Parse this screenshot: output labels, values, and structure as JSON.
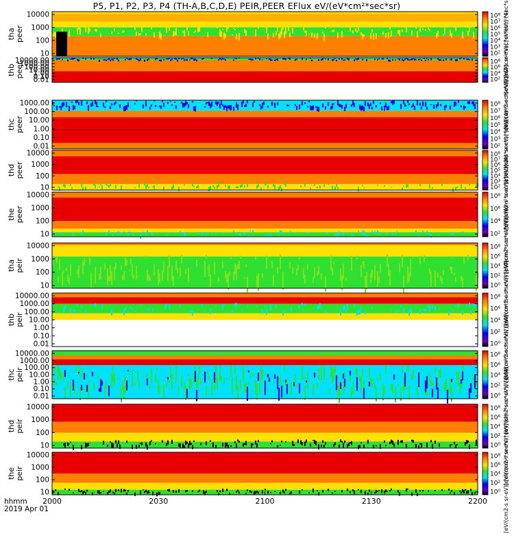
{
  "title": "P5, P1, P2, P3, P4 (TH-A,B,C,D,E) PEIR,PEER EFlux eV/(eV*cm²*sec*sr)",
  "chart_data": {
    "type": "heatmap",
    "title": "P5, P1, P2, P3, P4 (TH-A,B,C,D,E) PEIR,PEER EFlux eV/(eV*cm²*sec*sr)",
    "xlabel": "hhmm",
    "date_label": "2019 Apr 01",
    "x_ticks": [
      "2000",
      "2030",
      "2100",
      "2130",
      "2200"
    ],
    "colorbar_label": "[eV/(cm2-s sr-eV)] [eV/(cm²*sec*sr*eV)] (4)",
    "colors": {
      "black": "#000000",
      "purple": "#6000c0",
      "blue": "#0000ff",
      "cyan": "#00e0ff",
      "green": "#30e030",
      "yellow": "#ffe000",
      "orange": "#ff8000",
      "red": "#e80000"
    },
    "panels": [
      {
        "id": "tha-peer",
        "label": [
          "tha",
          "peer"
        ],
        "yticks": [
          "10000",
          "1000",
          "100",
          "10"
        ],
        "cbar_ticks": [
          "10⁸",
          "10⁷",
          "10⁶",
          "10⁵",
          "10⁴",
          "10³",
          "10²"
        ]
      },
      {
        "id": "thb-peer",
        "label": [
          "thb",
          "peer"
        ],
        "yticks": [
          "10000.00",
          "1000.00",
          "100.00",
          "10.00",
          "1.00",
          "0.10",
          "0.01"
        ],
        "cbar_ticks": [
          "10⁸",
          "10⁶",
          "10⁴",
          "10²"
        ]
      },
      {
        "id": "thc-peer",
        "label": [
          "thc",
          "peer"
        ],
        "yticks": [
          "1000.00",
          "100.00",
          "10.00",
          "1.00",
          "0.10",
          "0.01"
        ],
        "cbar_ticks": [
          "10⁸",
          "10⁷",
          "10⁶",
          "10⁵",
          "10⁴",
          "10³",
          "10²"
        ]
      },
      {
        "id": "thd-peer",
        "label": [
          "thd",
          "peer"
        ],
        "yticks": [
          "10000",
          "1000",
          "100",
          "10"
        ],
        "cbar_ticks": [
          "10⁸",
          "10⁷",
          "10⁶",
          "10⁵",
          "10⁴",
          "10³",
          "10²"
        ]
      },
      {
        "id": "the-peer",
        "label": [
          "the",
          "peer"
        ],
        "yticks": [
          "10000",
          "1000",
          "100",
          "10"
        ],
        "cbar_ticks": [
          "10⁸",
          "10⁶",
          "10⁴",
          "10²"
        ]
      },
      {
        "id": "tha-peir",
        "label": [
          "tha",
          "peir"
        ],
        "yticks": [
          "10000",
          "1000",
          "100",
          "10"
        ],
        "cbar_ticks": [
          "10⁸",
          "10⁶",
          "10⁴",
          "10²",
          "10⁰"
        ]
      },
      {
        "id": "thb-peir",
        "label": [
          "thb",
          "peir"
        ],
        "yticks": [
          "10000.00",
          "1000.00",
          "100.00",
          "10.00",
          "1.00",
          "0.10",
          "0.01"
        ],
        "cbar_ticks": [
          "10⁸",
          "10⁶",
          "10⁴",
          "10²",
          "10⁰"
        ]
      },
      {
        "id": "thc-peir",
        "label": [
          "thc",
          "peir"
        ],
        "yticks": [
          "10000.00",
          "1000.00",
          "100.00",
          "10.00",
          "1.00",
          "0.10",
          "0.01"
        ],
        "cbar_ticks": [
          "10⁸",
          "10⁶",
          "10⁴",
          "10²",
          "10⁰"
        ]
      },
      {
        "id": "thd-peir",
        "label": [
          "thd",
          "peir"
        ],
        "yticks": [
          "10000",
          "1000",
          "100",
          "10"
        ],
        "cbar_ticks": [
          "10⁸",
          "10⁶",
          "10⁴",
          "10²",
          "10⁰"
        ]
      },
      {
        "id": "the-peir",
        "label": [
          "the",
          "peir"
        ],
        "yticks": [
          "10000",
          "1000",
          "100",
          "10"
        ],
        "cbar_ticks": [
          "10⁸",
          "10⁶",
          "10⁴",
          "10²",
          "10⁰"
        ]
      }
    ]
  }
}
